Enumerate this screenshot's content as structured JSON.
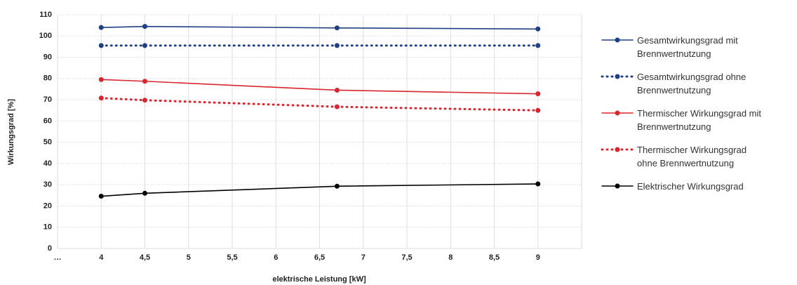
{
  "chart_data": {
    "type": "line",
    "xlabel": "elektrische Leistung [kW]",
    "ylabel": "Wirkungsgrad [%]",
    "x": [
      4,
      4.5,
      6.7,
      9
    ],
    "xlim": [
      3.5,
      9.5
    ],
    "xticks": [
      {
        "value": 3.5,
        "label": "…"
      },
      4,
      {
        "value": 4.5,
        "label": "4,5"
      },
      5,
      {
        "value": 5.5,
        "label": "5,5"
      },
      6,
      {
        "value": 6.5,
        "label": "6,5"
      },
      7,
      {
        "value": 7.5,
        "label": "7,5"
      },
      8,
      {
        "value": 8.5,
        "label": "8,5"
      },
      9
    ],
    "ylim": [
      0,
      110
    ],
    "yticks": [
      0,
      10,
      20,
      30,
      40,
      50,
      60,
      70,
      80,
      90,
      100,
      110
    ],
    "grid": true,
    "legend": "right",
    "series": [
      {
        "name": "Gesamtwirkungsgrad mit Brennwertnutzung",
        "color": "#1f3f86",
        "style": "solid",
        "values": [
          104,
          104.5,
          103.8,
          103.3
        ]
      },
      {
        "name": "Gesamtwirkungsgrad ohne Brennwertnutzung",
        "color": "#1f3f86",
        "style": "dotted",
        "values": [
          95.5,
          95.5,
          95.5,
          95.5
        ]
      },
      {
        "name": "Thermischer Wirkungsgrad mit Brennwertnutzung",
        "color": "#d9262e",
        "style": "solid",
        "values": [
          79.5,
          78.7,
          74.5,
          72.8
        ]
      },
      {
        "name": "Thermischer Wirkungsgrad ohne Brennwertnutzung",
        "color": "#d9262e",
        "style": "dotted",
        "values": [
          70.8,
          69.8,
          66.7,
          65
        ]
      },
      {
        "name": "Elektrischer Wirkungsgrad",
        "color": "#000000",
        "style": "solid",
        "values": [
          24.6,
          26,
          29.3,
          30.4
        ]
      }
    ]
  }
}
